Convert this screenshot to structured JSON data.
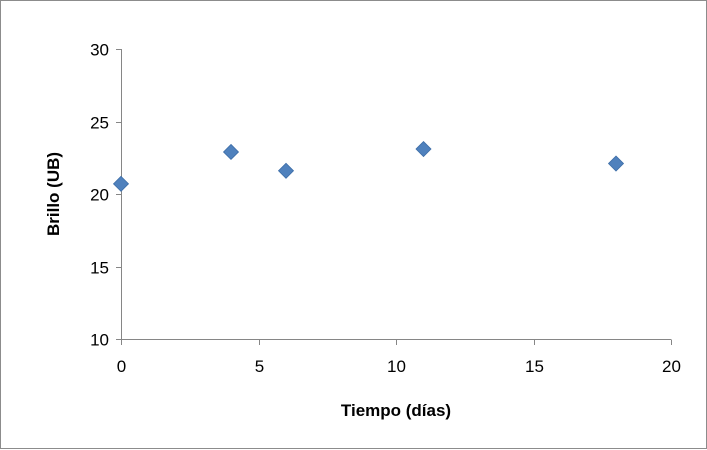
{
  "chart_data": {
    "type": "scatter",
    "title": "",
    "xlabel": "Tiempo (días)",
    "ylabel": "Brillo (UB)",
    "xlim": [
      0,
      20
    ],
    "ylim": [
      10,
      30
    ],
    "xticks": [
      0,
      5,
      10,
      15,
      20
    ],
    "yticks": [
      10,
      15,
      20,
      25,
      30
    ],
    "grid": false,
    "legend": "none",
    "marker": "diamond",
    "marker_color": "#4f81bd",
    "series": [
      {
        "x": [
          0,
          4,
          6,
          11,
          18
        ],
        "y": [
          20.7,
          22.9,
          21.6,
          23.1,
          22.1
        ]
      }
    ]
  }
}
